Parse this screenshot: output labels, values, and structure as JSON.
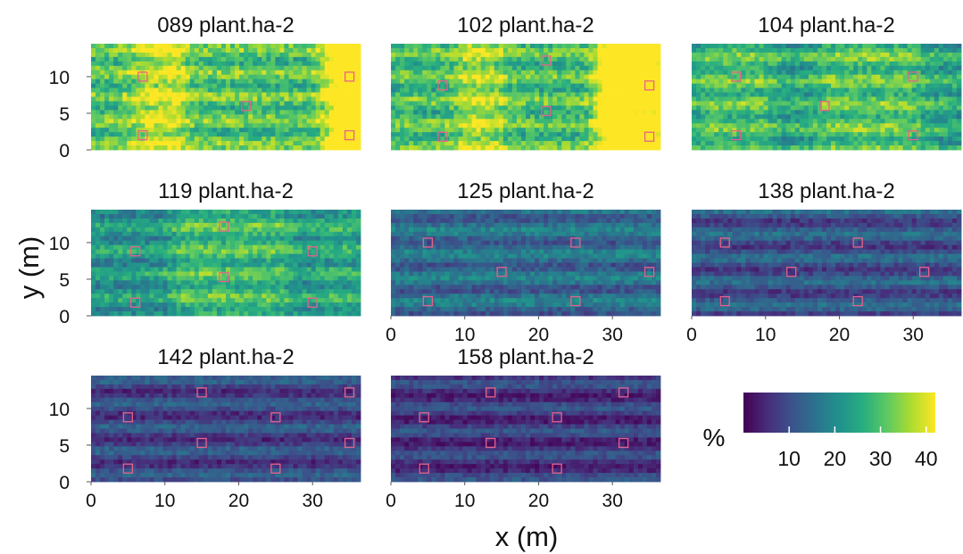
{
  "chart_data": {
    "type": "heatmap",
    "xlabel": "x (m)",
    "ylabel": "y (m)",
    "x_ticks": [
      0,
      10,
      20,
      30
    ],
    "y_ticks": [
      0,
      5,
      10
    ],
    "xlim": [
      0,
      36.5
    ],
    "ylim": [
      0,
      14.5
    ],
    "legend": {
      "title": "%",
      "ticks": [
        10,
        20,
        30,
        40
      ],
      "range": [
        0,
        42
      ],
      "placement": "bottom-right",
      "colormap": "viridis"
    },
    "marker_color": "#e8628a",
    "panels": [
      {
        "title": "089 plant.ha-2",
        "mean_pct": 30,
        "bands": [
          [
            8,
            11,
            16
          ],
          [
            34,
            37,
            41
          ]
        ],
        "squares": [
          [
            7,
            10
          ],
          [
            35,
            10
          ],
          [
            21,
            6
          ],
          [
            7,
            2
          ],
          [
            35,
            2
          ]
        ]
      },
      {
        "title": "102 plant.ha-2",
        "mean_pct": 29,
        "bands": [
          [
            11,
            13,
            15
          ],
          [
            30,
            35,
            40
          ]
        ],
        "squares": [
          [
            21,
            12.2
          ],
          [
            7,
            8.8
          ],
          [
            35,
            8.8
          ],
          [
            21,
            5.3
          ],
          [
            7,
            1.8
          ],
          [
            35,
            1.8
          ]
        ]
      },
      {
        "title": "104 plant.ha-2",
        "mean_pct": 25,
        "bands": [
          [
            3,
            9,
            9
          ],
          [
            19,
            29,
            10
          ]
        ],
        "squares": [
          [
            6,
            10
          ],
          [
            30,
            10
          ],
          [
            18,
            6
          ],
          [
            6,
            2
          ],
          [
            30,
            2
          ]
        ]
      },
      {
        "title": "119 plant.ha-2",
        "mean_pct": 22,
        "bands": [
          [
            13,
            25,
            12
          ],
          [
            33,
            35,
            6
          ]
        ],
        "squares": [
          [
            18,
            12.2
          ],
          [
            6,
            8.8
          ],
          [
            30,
            8.8
          ],
          [
            18,
            5.3
          ],
          [
            6,
            1.8
          ],
          [
            30,
            1.8
          ]
        ]
      },
      {
        "title": "125 plant.ha-2",
        "mean_pct": 15,
        "bands": [],
        "squares": [
          [
            5,
            10
          ],
          [
            25,
            10
          ],
          [
            15,
            6
          ],
          [
            35,
            6
          ],
          [
            5,
            2
          ],
          [
            25,
            2
          ]
        ]
      },
      {
        "title": "138 plant.ha-2",
        "mean_pct": 11,
        "bands": [],
        "squares": [
          [
            4.5,
            10
          ],
          [
            22.5,
            10
          ],
          [
            13.5,
            6
          ],
          [
            31.5,
            6
          ],
          [
            4.5,
            2
          ],
          [
            22.5,
            2
          ]
        ]
      },
      {
        "title": "142 plant.ha-2",
        "mean_pct": 9,
        "bands": [],
        "squares": [
          [
            15,
            12.2
          ],
          [
            35,
            12.2
          ],
          [
            5,
            8.8
          ],
          [
            25,
            8.8
          ],
          [
            15,
            5.3
          ],
          [
            35,
            5.3
          ],
          [
            5,
            1.8
          ],
          [
            25,
            1.8
          ]
        ]
      },
      {
        "title": "158 plant.ha-2",
        "mean_pct": 7,
        "bands": [],
        "squares": [
          [
            13.5,
            12.2
          ],
          [
            31.5,
            12.2
          ],
          [
            4.5,
            8.8
          ],
          [
            22.5,
            8.8
          ],
          [
            13.5,
            5.3
          ],
          [
            31.5,
            5.3
          ],
          [
            4.5,
            1.8
          ],
          [
            22.5,
            1.8
          ]
        ]
      }
    ]
  }
}
